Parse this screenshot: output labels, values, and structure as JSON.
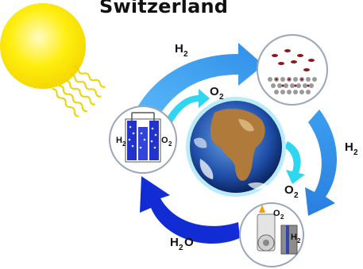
{
  "title": "Switzerland",
  "labels": {
    "h2_top": "H",
    "h2_top_sub": "2",
    "o2_top": "O",
    "o2_top_sub": "2",
    "h2_right": "H",
    "h2_right_sub": "2",
    "o2_earth": "O",
    "o2_earth_sub": "2",
    "h2o_bottom": "H",
    "h2o_bottom_sub": "2",
    "h2o_bottom_tail": "O",
    "cell_h2": "H",
    "cell_h2_sub": "2",
    "cell_o2": "O",
    "cell_o2_sub": "2",
    "engine_o2": "O",
    "engine_o2_sub": "2",
    "engine_h2": "H",
    "engine_h2_sub": "2"
  },
  "colors": {
    "sun": "#ffea00",
    "sun_core": "#fff8a0",
    "sun_rays": "#f2d800",
    "arrow_light": "#3fa9f5",
    "arrow_mid": "#2b8fe6",
    "arrow_dark": "#0f2fe0",
    "arrow_cyan": "#2fd6f0",
    "cell_blue": "#2233cc",
    "storage_red": "#8b1a1a"
  }
}
